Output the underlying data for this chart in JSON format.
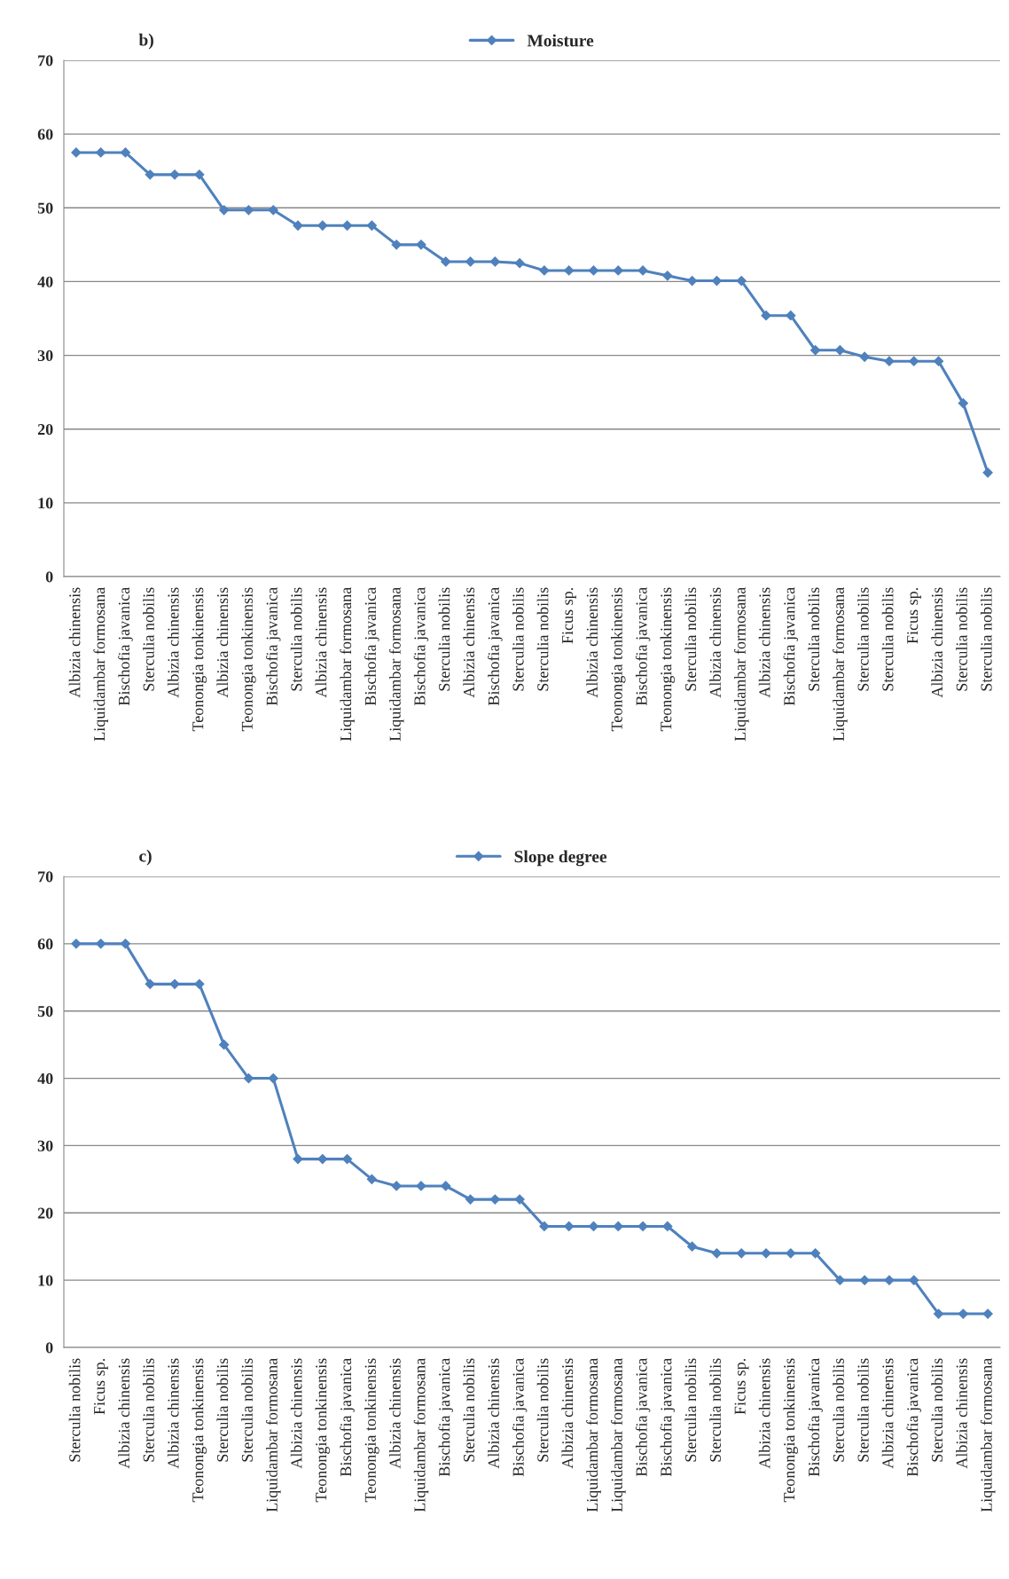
{
  "chart_data": [
    {
      "type": "line",
      "title": "b)",
      "categories": [
        "Albizia chinensis",
        "Liquidambar formosana",
        "Bischofia javanica",
        "Sterculia nobilis",
        "Albizia chinensis",
        "Teonongia tonkinensis",
        "Albizia chinensis",
        "Teonongia tonkinensis",
        "Bischofia javanica",
        "Sterculia nobilis",
        "Albizia chinensis",
        "Liquidambar formosana",
        "Bischofia javanica",
        "Liquidambar formosana",
        "Bischofia javanica",
        "Sterculia nobilis",
        "Albizia chinensis",
        "Bischofia javanica",
        "Sterculia nobilis",
        "Sterculia nobilis",
        "Ficus sp.",
        "Albizia chinensis",
        "Teonongia tonkinensis",
        "Bischofia javanica",
        "Teonongia tonkinensis",
        "Sterculia nobilis",
        "Albizia chinensis",
        "Liquidambar formosana",
        "Albizia chinensis",
        "Bischofia javanica",
        "Sterculia nobilis",
        "Liquidambar formosana",
        "Sterculia nobilis",
        "Sterculia nobilis",
        "Ficus sp.",
        "Albizia chinensis",
        "Sterculia nobilis",
        "Sterculia nobilis"
      ],
      "series": [
        {
          "name": "Moisture",
          "color": "#4f81bd",
          "values": [
            57.5,
            57.5,
            57.5,
            54.5,
            54.5,
            54.5,
            49.7,
            49.7,
            49.7,
            47.6,
            47.6,
            47.6,
            47.6,
            45,
            45,
            42.7,
            42.7,
            42.7,
            42.5,
            41.5,
            41.5,
            41.5,
            41.5,
            41.5,
            40.8,
            40.1,
            40.1,
            40.1,
            35.4,
            35.4,
            30.7,
            30.7,
            29.8,
            29.2,
            29.2,
            29.2,
            23.5,
            14.1
          ]
        }
      ],
      "ylim": [
        0,
        70
      ],
      "yticks": [
        0,
        10,
        20,
        30,
        40,
        50,
        60,
        70
      ],
      "grid": "y",
      "legend": "top",
      "marker": "diamond",
      "line_style": "solid"
    },
    {
      "type": "line",
      "title": "c)",
      "categories": [
        "Sterculia nobilis",
        "Ficus sp.",
        "Albizia chinensis",
        "Sterculia nobilis",
        "Albizia chinensis",
        "Teonongia tonkinensis",
        "Sterculia nobilis",
        "Sterculia nobilis",
        "Liquidambar formosana",
        "Albizia chinensis",
        "Teonongia tonkinensis",
        "Bischofia javanica",
        "Teonongia tonkinensis",
        "Albizia chinensis",
        "Liquidambar formosana",
        "Bischofia javanica",
        "Sterculia nobilis",
        "Albizia chinensis",
        "Bischofia javanica",
        "Sterculia nobilis",
        "Albizia chinensis",
        "Liquidambar formosana",
        "Liquidambar formosana",
        "Bischofia javanica",
        "Bischofia javanica",
        "Sterculia nobilis",
        "Sterculia nobilis",
        "Ficus sp.",
        "Albizia chinensis",
        "Teonongia tonkinensis",
        "Bischofia javanica",
        "Sterculia nobilis",
        "Sterculia nobilis",
        "Albizia chinensis",
        "Bischofia javanica",
        "Sterculia nobilis",
        "Albizia chinensis",
        "Liquidambar formosana"
      ],
      "series": [
        {
          "name": "Slope degree",
          "color": "#4f81bd",
          "values": [
            60,
            60,
            60,
            54,
            54,
            54,
            45,
            40,
            40,
            28,
            28,
            28,
            25,
            24,
            24,
            24,
            22,
            22,
            22,
            18,
            18,
            18,
            18,
            18,
            18,
            15,
            14,
            14,
            14,
            14,
            14,
            10,
            10,
            10,
            10,
            5,
            5,
            5
          ]
        }
      ],
      "ylim": [
        0,
        70
      ],
      "yticks": [
        0,
        10,
        20,
        30,
        40,
        50,
        60,
        70
      ],
      "grid": "y",
      "legend": "top",
      "marker": "diamond",
      "line_style": "solid"
    }
  ]
}
